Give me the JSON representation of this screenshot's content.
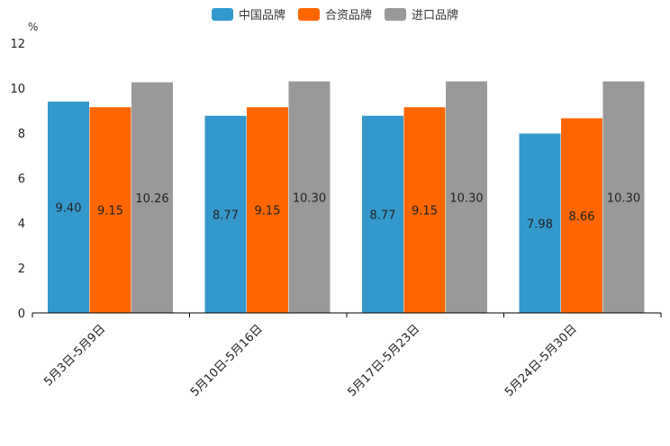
{
  "chart_data": {
    "type": "bar",
    "unit_label": "%",
    "categories": [
      "5月3日-5月9日",
      "5月10日-5月16日",
      "5月17日-5月23日",
      "5月24日-5月30日"
    ],
    "series": [
      {
        "name": "中国品牌",
        "color": "#3399cc",
        "values": [
          9.4,
          8.77,
          8.77,
          7.98
        ],
        "labels": [
          "9.40",
          "8.77",
          "8.77",
          "7.98"
        ]
      },
      {
        "name": "合资品牌",
        "color": "#ff6600",
        "values": [
          9.15,
          9.15,
          9.15,
          8.66
        ],
        "labels": [
          "9.15",
          "9.15",
          "9.15",
          "8.66"
        ]
      },
      {
        "name": "进口品牌",
        "color": "#999999",
        "values": [
          10.26,
          10.3,
          10.3,
          10.3
        ],
        "labels": [
          "10.26",
          "10.30",
          "10.30",
          "10.30"
        ]
      }
    ],
    "yticks": [
      "0",
      "2",
      "4",
      "6",
      "8",
      "10",
      "12"
    ],
    "ylim": [
      0,
      12
    ],
    "legend_position": "top-center",
    "grid": false
  }
}
